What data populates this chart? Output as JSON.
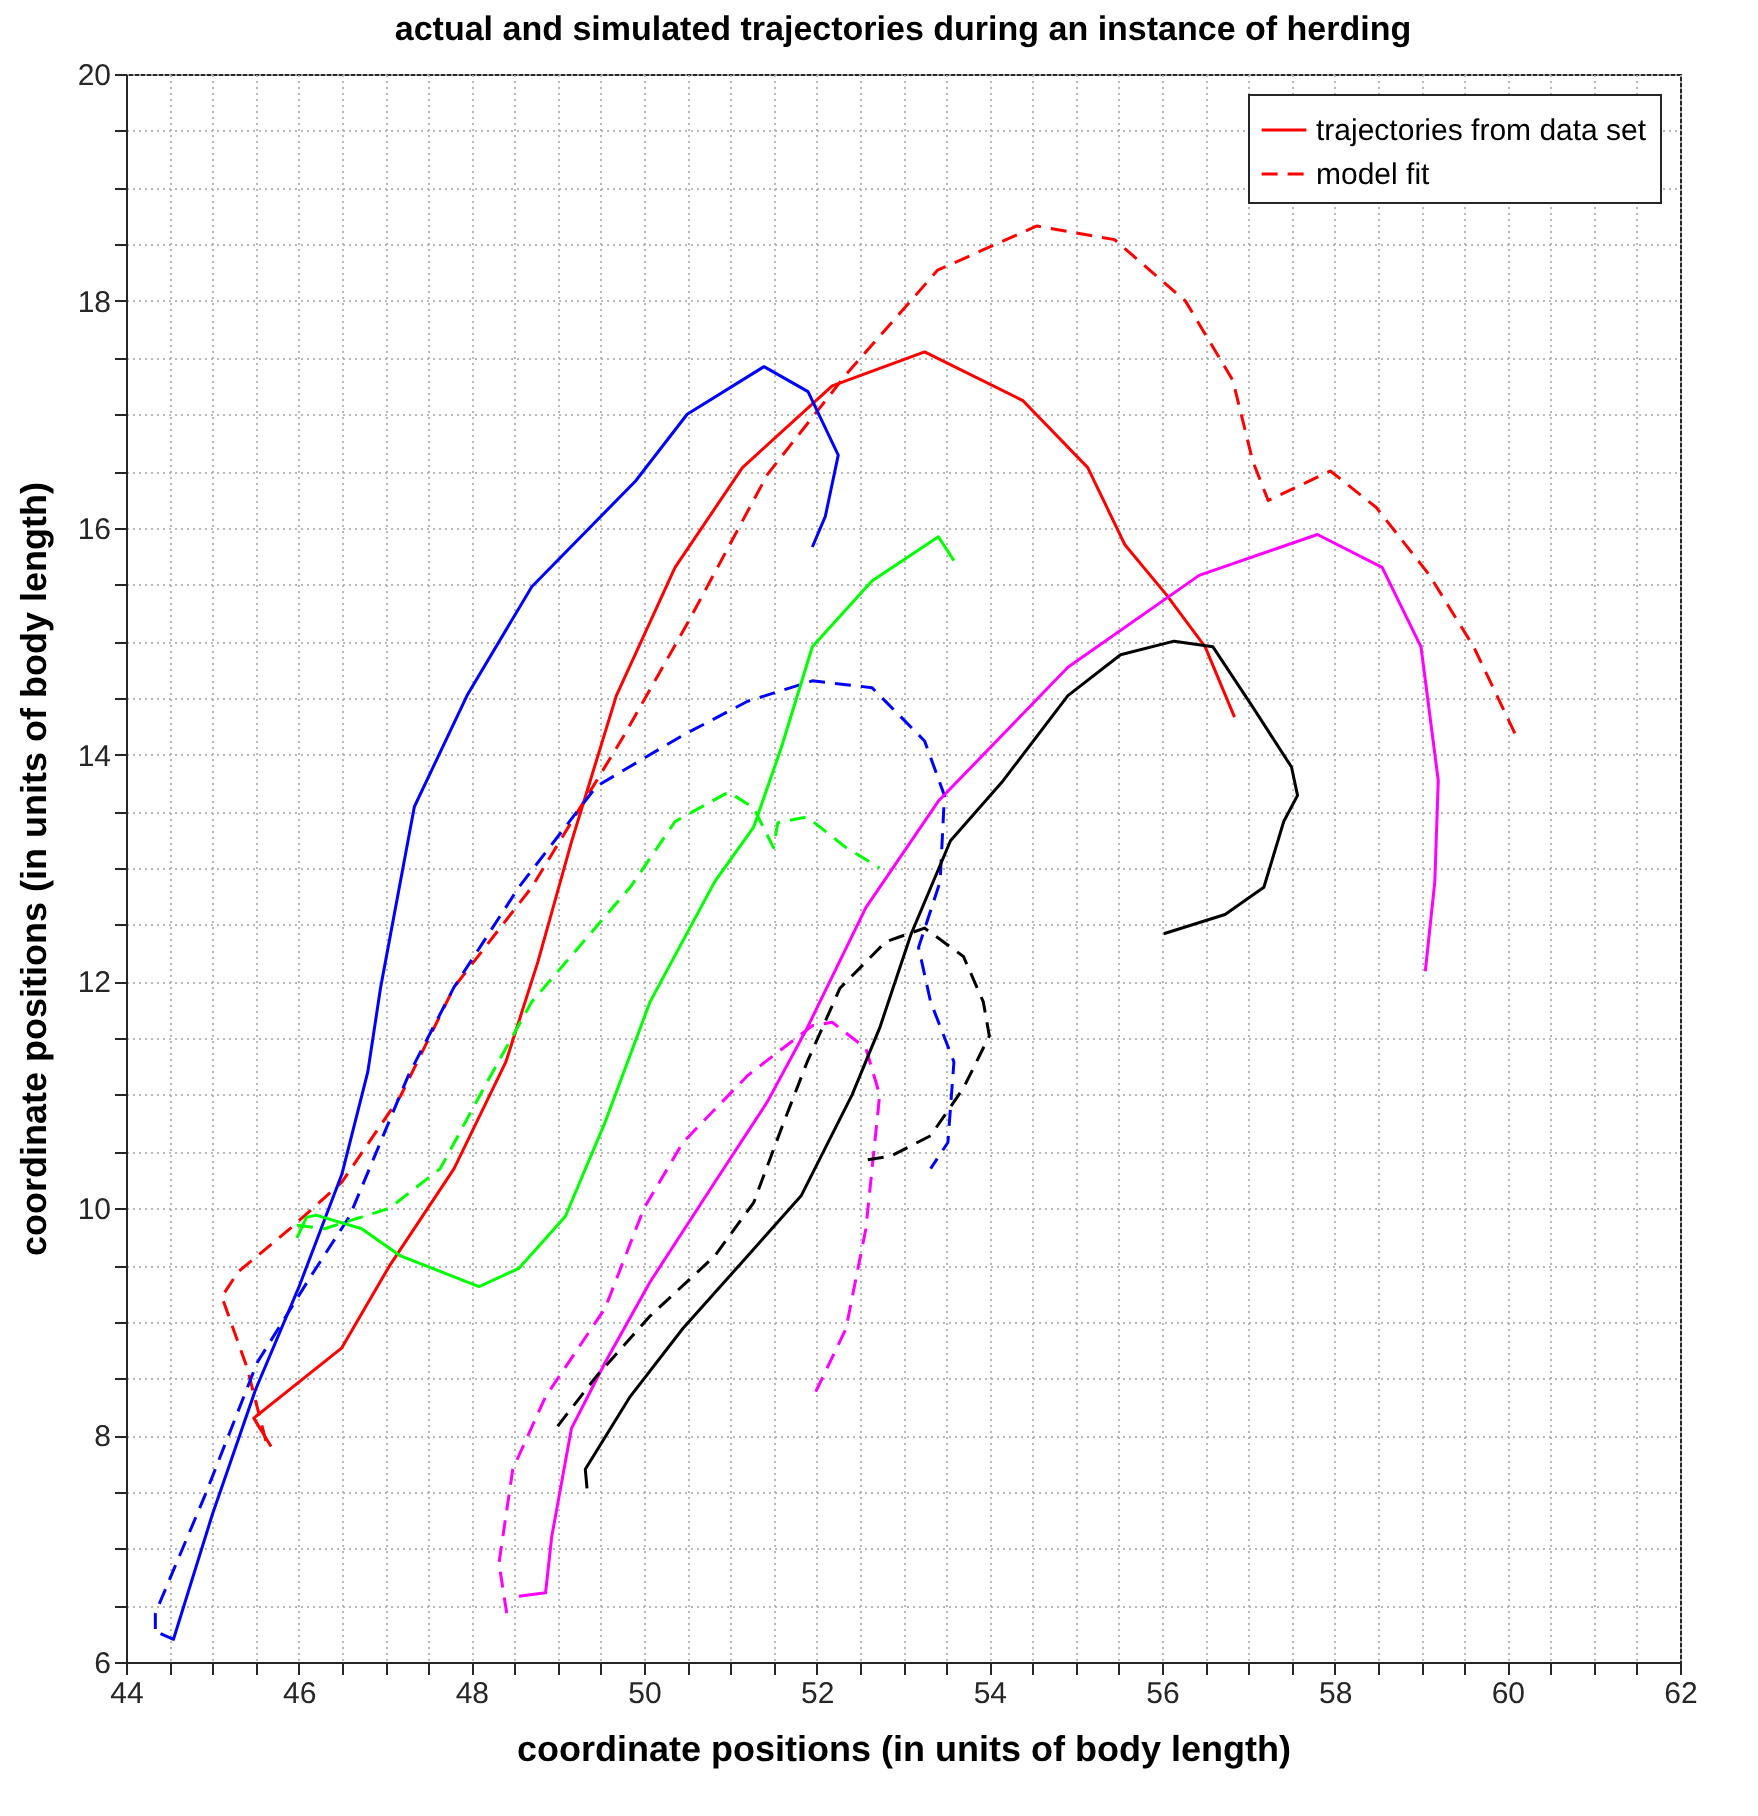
{
  "chart_data": {
    "type": "line",
    "title": "actual and simulated trajectories during an instance of herding",
    "xlabel": "coordinate positions (in units of body length)",
    "ylabel": "coordinate positions (in units of body length)",
    "xlim": [
      44,
      62
    ],
    "ylim": [
      6,
      20
    ],
    "xticks": [
      44,
      {
        "value": 44.5,
        "label": null
      },
      {
        "value": 45,
        "label": null
      },
      {
        "value": 45.5,
        "label": null
      },
      46,
      {
        "value": 46.5,
        "label": null
      },
      {
        "value": 47,
        "label": null
      },
      {
        "value": 47.5,
        "label": null
      },
      48,
      {
        "value": 48.5,
        "label": null
      },
      {
        "value": 49,
        "label": null
      },
      {
        "value": 49.5,
        "label": null
      },
      50,
      {
        "value": 50.5,
        "label": null
      },
      {
        "value": 51,
        "label": null
      },
      {
        "value": 51.5,
        "label": null
      },
      52,
      {
        "value": 52.5,
        "label": null
      },
      {
        "value": 53,
        "label": null
      },
      {
        "value": 53.5,
        "label": null
      },
      54,
      {
        "value": 54.5,
        "label": null
      },
      {
        "value": 55,
        "label": null
      },
      {
        "value": 55.5,
        "label": null
      },
      56,
      {
        "value": 56.5,
        "label": null
      },
      {
        "value": 57,
        "label": null
      },
      {
        "value": 57.5,
        "label": null
      },
      58,
      {
        "value": 58.5,
        "label": null
      },
      {
        "value": 59,
        "label": null
      },
      {
        "value": 59.5,
        "label": null
      },
      60,
      {
        "value": 60.5,
        "label": null
      },
      {
        "value": 61,
        "label": null
      },
      {
        "value": 61.5,
        "label": null
      },
      62
    ],
    "yticks": [
      6,
      {
        "value": 6.5,
        "label": null
      },
      {
        "value": 7,
        "label": null
      },
      {
        "value": 7.5,
        "label": null
      },
      8,
      {
        "value": 8.5,
        "label": null
      },
      {
        "value": 9,
        "label": null
      },
      {
        "value": 9.5,
        "label": null
      },
      10,
      {
        "value": 10.5,
        "label": null
      },
      {
        "value": 11,
        "label": null
      },
      {
        "value": 11.5,
        "label": null
      },
      12,
      {
        "value": 12.5,
        "label": null
      },
      {
        "value": 13,
        "label": null
      },
      {
        "value": 13.5,
        "label": null
      },
      14,
      {
        "value": 14.5,
        "label": null
      },
      {
        "value": 15,
        "label": null
      },
      {
        "value": 15.5,
        "label": null
      },
      16,
      {
        "value": 16.5,
        "label": null
      },
      {
        "value": 17,
        "label": null
      },
      {
        "value": 17.5,
        "label": null
      },
      18,
      {
        "value": 18.5,
        "label": null
      },
      {
        "value": 19,
        "label": null
      },
      {
        "value": 19.5,
        "label": null
      },
      20
    ],
    "grid": true,
    "legend": "top right",
    "series": [
      {
        "name": "trajectories from data set",
        "color": "#ff0000",
        "line_style": "solid",
        "x": [
          45.68,
          45.48,
          46.5,
          47.05,
          47.8,
          48.4,
          48.77,
          49.16,
          49.68,
          50.36,
          51.14,
          52.18,
          53.25,
          54.39,
          55.14,
          55.57,
          56.05,
          56.5,
          56.84
        ],
        "values": [
          7.9,
          8.15,
          8.77,
          9.49,
          10.35,
          11.29,
          12.17,
          13.23,
          14.52,
          15.65,
          16.53,
          17.25,
          17.55,
          17.12,
          16.53,
          15.85,
          15.41,
          14.95,
          14.33
        ]
      },
      {
        "name": "model fit",
        "color": "#ff0000",
        "line_style": "dashed",
        "x": [
          45.62,
          45.4,
          45.11,
          45.3,
          45.9,
          46.5,
          47.18,
          47.8,
          48.7,
          49.77,
          50.52,
          51.43,
          52.34,
          53.4,
          54.55,
          55.45,
          56.27,
          56.82,
          57.05,
          57.23,
          57.95,
          58.48,
          59.09,
          59.61,
          60.11
        ],
        "values": [
          7.95,
          8.6,
          9.22,
          9.44,
          9.82,
          10.23,
          10.99,
          11.95,
          12.83,
          14.17,
          15.18,
          16.47,
          17.35,
          18.27,
          18.66,
          18.54,
          18.0,
          17.3,
          16.59,
          16.24,
          16.5,
          16.18,
          15.59,
          14.95,
          14.15
        ]
      },
      {
        "color": "#0000ff",
        "line_style": "solid",
        "x": [
          44.4,
          44.55,
          45.0,
          45.5,
          46.0,
          46.5,
          46.8,
          46.95,
          47.34,
          47.95,
          48.7,
          49.9,
          50.5,
          51.39,
          51.9,
          52.25,
          52.1,
          51.95
        ],
        "values": [
          6.25,
          6.2,
          7.3,
          8.4,
          9.3,
          10.3,
          11.2,
          11.95,
          13.54,
          14.52,
          15.48,
          16.41,
          17.0,
          17.42,
          17.2,
          16.64,
          16.1,
          15.83
        ]
      },
      {
        "color": "#0000ff",
        "line_style": "dashed",
        "x": [
          44.34,
          44.34,
          44.91,
          45.52,
          46.14,
          46.59,
          47.27,
          47.8,
          48.55,
          49.45,
          50.45,
          51.2,
          51.95,
          52.64,
          53.25,
          53.48,
          53.43,
          53.18,
          53.32,
          53.59,
          53.52,
          53.32
        ],
        "values": [
          6.29,
          6.43,
          7.46,
          8.64,
          9.4,
          9.93,
          11.17,
          11.95,
          12.83,
          13.72,
          14.17,
          14.47,
          14.65,
          14.59,
          14.12,
          13.64,
          12.88,
          12.3,
          11.82,
          11.29,
          10.58,
          10.35
        ]
      },
      {
        "color": "#00ff00",
        "line_style": "solid",
        "x": [
          45.98,
          46.09,
          46.2,
          46.73,
          47.18,
          48.09,
          48.55,
          49.09,
          49.55,
          50.07,
          50.82,
          51.27,
          51.59,
          51.95,
          52.64,
          53.41,
          53.59
        ],
        "values": [
          9.74,
          9.92,
          9.94,
          9.82,
          9.58,
          9.31,
          9.47,
          9.93,
          10.76,
          11.82,
          12.88,
          13.36,
          14.06,
          14.95,
          15.53,
          15.92,
          15.71
        ]
      },
      {
        "color": "#00ff00",
        "line_style": "dashed",
        "x": [
          45.98,
          46.3,
          47.05,
          47.64,
          48.18,
          48.7,
          49.84,
          50.36,
          50.98,
          51.27,
          51.5,
          51.55,
          51.89,
          52.34,
          52.73
        ],
        "values": [
          9.85,
          9.82,
          10.0,
          10.35,
          11.11,
          11.82,
          12.83,
          13.41,
          13.67,
          13.53,
          13.18,
          13.4,
          13.45,
          13.18,
          13.0
        ]
      },
      {
        "color": "#ff00ff",
        "line_style": "solid",
        "x": [
          48.55,
          48.86,
          48.93,
          49.16,
          49.55,
          50.07,
          50.82,
          51.43,
          51.89,
          52.57,
          53.41,
          54.91,
          56.43,
          57.8,
          58.55,
          59.0,
          59.2,
          59.16,
          59.05
        ],
        "values": [
          6.58,
          6.61,
          7.1,
          8.06,
          8.64,
          9.35,
          10.23,
          10.94,
          11.59,
          12.65,
          13.59,
          14.77,
          15.58,
          15.94,
          15.65,
          14.95,
          13.77,
          12.88,
          12.09
        ]
      },
      {
        "color": "#ff00ff",
        "line_style": "dashed",
        "x": [
          48.41,
          48.32,
          48.48,
          48.86,
          49.55,
          50.0,
          50.45,
          51.2,
          51.95,
          52.18,
          52.57,
          52.73,
          52.57,
          52.34,
          51.95
        ],
        "values": [
          6.43,
          6.87,
          7.7,
          8.34,
          9.12,
          10.0,
          10.58,
          11.17,
          11.61,
          11.64,
          11.41,
          11.0,
          9.82,
          8.94,
          8.32
        ]
      },
      {
        "color": "#000000",
        "line_style": "solid",
        "x": [
          49.34,
          49.32,
          49.84,
          50.45,
          51.2,
          51.82,
          52.41,
          52.73,
          53.09,
          53.55,
          54.16,
          54.91,
          55.52,
          56.14,
          56.59,
          57.05,
          57.5,
          57.57,
          57.41,
          57.18,
          56.73,
          56.02
        ],
        "values": [
          7.53,
          7.7,
          8.34,
          8.94,
          9.58,
          10.11,
          11.0,
          11.59,
          12.41,
          13.24,
          13.77,
          14.52,
          14.88,
          15.0,
          14.95,
          14.42,
          13.89,
          13.64,
          13.41,
          12.83,
          12.59,
          12.42
        ]
      },
      {
        "color": "#000000",
        "line_style": "dashed",
        "x": [
          49.0,
          49.45,
          50.07,
          50.82,
          51.27,
          51.59,
          51.89,
          52.27,
          52.8,
          53.25,
          53.7,
          53.93,
          54.0,
          53.7,
          53.32,
          52.86,
          52.52
        ],
        "values": [
          8.08,
          8.52,
          9.05,
          9.58,
          10.05,
          10.7,
          11.29,
          11.94,
          12.35,
          12.47,
          12.22,
          11.82,
          11.52,
          11.06,
          10.64,
          10.46,
          10.42
        ]
      }
    ]
  }
}
